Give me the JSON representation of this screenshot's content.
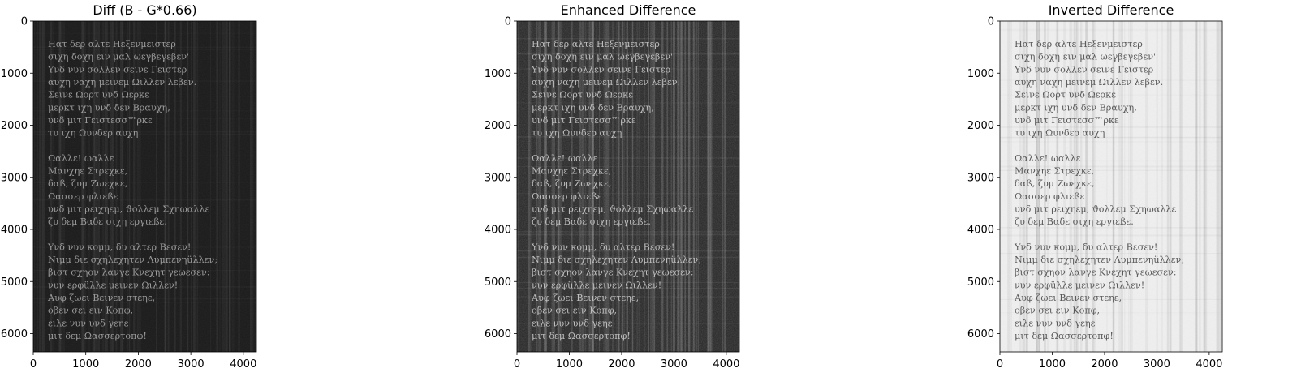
{
  "chart_data": [
    {
      "type": "image",
      "title": "Diff (B - G*0.66)",
      "colormap": "gray",
      "background": "#1a1a1a",
      "text_color": "#9a9a9a",
      "stripe_alpha": 0.05,
      "extent": {
        "x": [
          0,
          4250
        ],
        "y": [
          6350,
          0
        ]
      },
      "xticks": [
        0,
        1000,
        2000,
        3000,
        4000
      ],
      "yticks": [
        0,
        1000,
        2000,
        3000,
        4000,
        5000,
        6000
      ],
      "xtick_labels": [
        "0",
        "1000",
        "2000",
        "3000",
        "4000"
      ],
      "ytick_labels": [
        "0",
        "1000",
        "2000",
        "3000",
        "4000",
        "5000",
        "6000"
      ]
    },
    {
      "type": "image",
      "title": "Enhanced Difference",
      "colormap": "gray",
      "background": "#262626",
      "text_color": "#bdbdbd",
      "stripe_alpha": 0.14,
      "extent": {
        "x": [
          0,
          4250
        ],
        "y": [
          6350,
          0
        ]
      },
      "xticks": [
        0,
        1000,
        2000,
        3000,
        4000
      ],
      "yticks": [
        0,
        1000,
        2000,
        3000,
        4000,
        5000,
        6000
      ],
      "xtick_labels": [
        "0",
        "1000",
        "2000",
        "3000",
        "4000"
      ],
      "ytick_labels": [
        "0",
        "1000",
        "2000",
        "3000",
        "4000",
        "5000",
        "6000"
      ]
    },
    {
      "type": "image",
      "title": "Inverted Difference",
      "colormap": "gray",
      "background": "#f0f0f0",
      "text_color": "#5a5a5a",
      "stripe_alpha": 0.06,
      "extent": {
        "x": [
          0,
          4250
        ],
        "y": [
          6350,
          0
        ]
      },
      "xticks": [
        0,
        1000,
        2000,
        3000,
        4000
      ],
      "yticks": [
        0,
        1000,
        2000,
        3000,
        4000,
        5000,
        6000
      ],
      "xtick_labels": [
        "0",
        "1000",
        "2000",
        "3000",
        "4000"
      ],
      "ytick_labels": [
        "0",
        "1000",
        "2000",
        "3000",
        "4000",
        "5000",
        "6000"
      ]
    }
  ],
  "poem_lines": [
    "Ηατ δερ αλτε Ηεξενμειστερ",
    "σιχη δοχη ειν μαλ ωεγβεγεβεν'",
    "Υνδ νυν σολλεν σεινε Γειστερ",
    "αυχη ναχη μεινεμ Ωιλλεν λεβεν.",
    "Σεινε Ωορτ υνδ Ωερκε",
    "μερκτ ιχη υνδ δεν Βραυχη,",
    "υνδ μιτ Γειστεσσ™ρκε",
    "τυ ιχη Ωυνδερ αυχη",
    "",
    "Ωαλλε! ωαλλε",
    "Μανχηε Στρεχκε,",
    "δαß, ζυμ Ζωεχκε,",
    "Ωασσερ φλιεßε",
    "υνδ μιτ ρειχηεμ, ϑολλεμ Σχηωαλλε",
    "ζυ δεμ Βαδε σιχη εργιεßε.",
    "",
    "Υνδ νυν κομμ, δυ αλτερ Βεσεν!",
    "Νιμμ διε σχηλεχητεν Λυμπενηüλλεν;",
    "βιστ σχηον λανγε Κνεχητ γεωεσεν:",
    "νυν ερφüλλε μεινεν Ωιλλεν!",
    "Αυφ ζωει Βεινεν στεηε,",
    "οβεν σει ειν Κοπφ,",
    "ειλε νυν υνδ γεηε",
    "μιτ δεμ Ωασσερτοπφ!"
  ]
}
